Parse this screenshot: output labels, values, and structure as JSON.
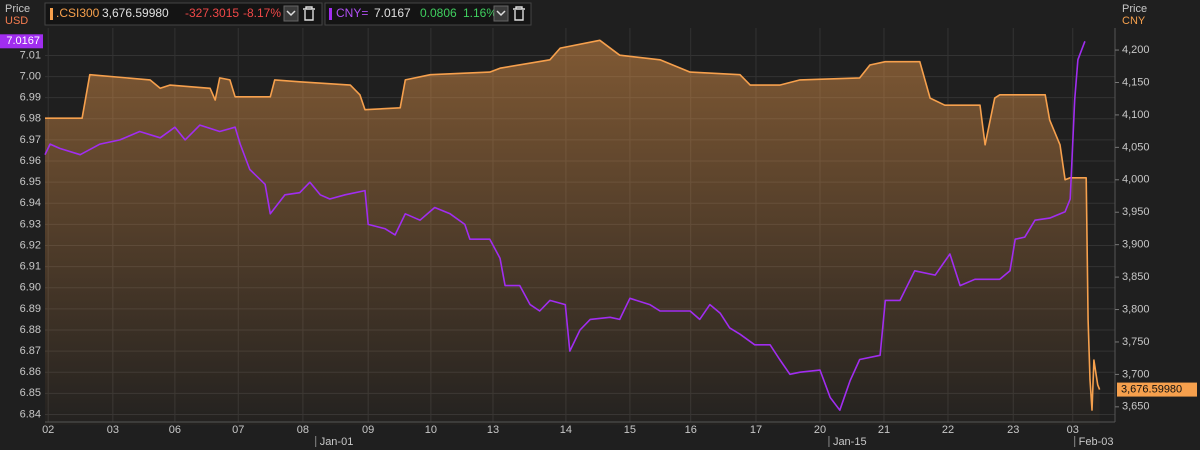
{
  "chart_data": {
    "type": "line",
    "left_axis_title": "Price",
    "left_axis_unit": "USD",
    "right_axis_title": "Price",
    "right_axis_unit": "CNY",
    "xlim": [
      0,
      16.72
    ],
    "xticks": [
      {
        "value": 0.05,
        "label": "02"
      },
      {
        "value": 1.06,
        "label": "03"
      },
      {
        "value": 2.03,
        "label": "06"
      },
      {
        "value": 3.02,
        "label": "07"
      },
      {
        "value": 4.03,
        "label": "08"
      },
      {
        "value": 5.05,
        "label": "09"
      },
      {
        "value": 6.03,
        "label": "10"
      },
      {
        "value": 7.0,
        "label": "13"
      },
      {
        "value": 8.14,
        "label": "14"
      },
      {
        "value": 9.14,
        "label": "15"
      },
      {
        "value": 10.09,
        "label": "16"
      },
      {
        "value": 11.11,
        "label": "17"
      },
      {
        "value": 12.11,
        "label": "20"
      },
      {
        "value": 13.11,
        "label": "21"
      },
      {
        "value": 14.11,
        "label": "22"
      },
      {
        "value": 15.13,
        "label": "23"
      },
      {
        "value": 16.06,
        "label": "03"
      }
    ],
    "month_ticks": [
      {
        "value": 4.23,
        "label": "Jan-01"
      },
      {
        "value": 12.25,
        "label": "Jan-15"
      },
      {
        "value": 16.09,
        "label": "Feb-03"
      }
    ],
    "ylim": [
      6.835,
      7.023
    ],
    "yticks": [
      6.84,
      6.85,
      6.86,
      6.87,
      6.88,
      6.89,
      {
        "value": 6.9,
        "label": "6.90"
      },
      6.91,
      6.92,
      6.93,
      6.94,
      6.95,
      6.96,
      6.97,
      6.98,
      6.99,
      {
        "value": 7,
        "label": "7.00"
      },
      7.01
    ],
    "y2lim": [
      3622,
      4234
    ],
    "y2ticks": [
      {
        "value": 3650,
        "label": "3,650"
      },
      {
        "value": 3700,
        "label": "3,700"
      },
      {
        "value": 3750,
        "label": "3,750"
      },
      {
        "value": 3800,
        "label": "3,800"
      },
      {
        "value": 3850,
        "label": "3,850"
      },
      {
        "value": 3900,
        "label": "3,900"
      },
      {
        "value": 3950,
        "label": "3,950"
      },
      {
        "value": 4000,
        "label": "4,000"
      },
      {
        "value": 4050,
        "label": "4,050"
      },
      {
        "value": 4100,
        "label": "4,100"
      },
      {
        "value": 4150,
        "label": "4,150"
      },
      {
        "value": 4200,
        "label": "4,200"
      }
    ],
    "grid": true,
    "series": [
      {
        "name": ".CSI300",
        "color": "#f6a04d",
        "axis": "y2",
        "area": true,
        "last": {
          "value": 3676.5998,
          "label": "3,676.59980"
        },
        "change": "-327.3015",
        "change_pct": "-8.17%",
        "x": [
          0,
          0.58,
          0.7,
          1.64,
          1.8,
          1.95,
          2.58,
          2.66,
          2.73,
          2.89,
          2.97,
          3.52,
          3.59,
          3.98,
          4.77,
          4.92,
          5.0,
          5.55,
          5.63,
          6.02,
          6.95,
          7.11,
          7.89,
          8.05,
          8.67,
          8.98,
          9.61,
          10.08,
          10.86,
          11.02,
          11.48,
          11.8,
          12.73,
          12.89,
          13.13,
          13.67,
          13.83,
          14.06,
          14.61,
          14.69,
          14.84,
          14.92,
          15.63,
          15.7,
          15.86,
          15.94,
          16.02,
          16.27,
          16.3,
          16.33,
          16.36,
          16.39,
          16.45,
          16.48
        ],
        "values": [
          4095,
          4095,
          4162,
          4154,
          4141,
          4146,
          4141,
          4123,
          4157,
          4154,
          4128,
          4128,
          4154,
          4151,
          4146,
          4131,
          4108,
          4111,
          4154,
          4162,
          4166,
          4172,
          4185,
          4203,
          4215,
          4192,
          4185,
          4166,
          4162,
          4146,
          4146,
          4154,
          4157,
          4177,
          4182,
          4182,
          4126,
          4115,
          4115,
          4054,
          4126,
          4131,
          4131,
          4092,
          4054,
          4000,
          4003,
          4003,
          3784,
          3692,
          3645,
          3722,
          3684,
          3676.5998
        ]
      },
      {
        "name": "CNY=",
        "color": "#a12df0",
        "axis": "y",
        "last": 7.0167,
        "change": "0.0806",
        "change_pct": "1.16%",
        "x": [
          0,
          0.08,
          0.23,
          0.55,
          0.86,
          1.17,
          1.48,
          1.8,
          2.03,
          2.19,
          2.42,
          2.73,
          2.97,
          3.05,
          3.2,
          3.44,
          3.52,
          3.75,
          3.98,
          4.14,
          4.3,
          4.45,
          4.69,
          5.0,
          5.05,
          5.31,
          5.47,
          5.63,
          5.86,
          6.09,
          6.33,
          6.56,
          6.64,
          6.95,
          7.11,
          7.19,
          7.42,
          7.58,
          7.73,
          7.89,
          8.13,
          8.2,
          8.36,
          8.52,
          8.83,
          8.98,
          9.14,
          9.45,
          9.61,
          10.08,
          10.23,
          10.39,
          10.55,
          10.7,
          10.86,
          11.09,
          11.33,
          11.48,
          11.64,
          11.8,
          12.11,
          12.27,
          12.42,
          12.58,
          12.73,
          13.05,
          13.13,
          13.36,
          13.59,
          13.91,
          14.14,
          14.3,
          14.53,
          14.92,
          15.08,
          15.16,
          15.31,
          15.47,
          15.7,
          15.94,
          16.02,
          16.09,
          16.14,
          16.25
        ],
        "values": [
          6.963,
          6.968,
          6.966,
          6.963,
          6.968,
          6.97,
          6.974,
          6.971,
          6.976,
          6.97,
          6.977,
          6.974,
          6.976,
          6.968,
          6.956,
          6.949,
          6.935,
          6.944,
          6.945,
          6.95,
          6.944,
          6.942,
          6.944,
          6.946,
          6.93,
          6.928,
          6.925,
          6.935,
          6.932,
          6.938,
          6.935,
          6.93,
          6.923,
          6.923,
          6.914,
          6.901,
          6.901,
          6.892,
          6.889,
          6.894,
          6.892,
          6.87,
          6.88,
          6.885,
          6.886,
          6.885,
          6.895,
          6.892,
          6.889,
          6.889,
          6.885,
          6.892,
          6.888,
          6.881,
          6.878,
          6.873,
          6.873,
          6.866,
          6.859,
          6.86,
          6.861,
          6.848,
          6.842,
          6.856,
          6.866,
          6.868,
          6.894,
          6.894,
          6.908,
          6.906,
          6.916,
          6.901,
          6.904,
          6.904,
          6.908,
          6.923,
          6.924,
          6.932,
          6.933,
          6.936,
          6.942,
          6.989,
          7.008,
          7.0167
        ]
      }
    ]
  }
}
